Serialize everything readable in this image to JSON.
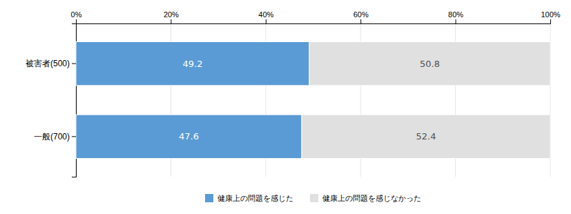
{
  "chart_data": {
    "type": "bar",
    "orientation": "horizontal",
    "stacked": true,
    "categories": [
      "被害者(500)",
      "一般(700)"
    ],
    "series": [
      {
        "name": "健康上の問題を感じた",
        "color": "#5B9BD5",
        "values": [
          49.2,
          47.6
        ]
      },
      {
        "name": "健康上の問題を感じなかった",
        "color": "#E0E0E0",
        "values": [
          50.8,
          52.4
        ]
      }
    ],
    "xlim": [
      0,
      100
    ],
    "xticks": [
      {
        "value": 0,
        "label": "0%"
      },
      {
        "value": 20,
        "label": "20%"
      },
      {
        "value": 40,
        "label": "40%"
      },
      {
        "value": 60,
        "label": "60%"
      },
      {
        "value": 80,
        "label": "80%"
      },
      {
        "value": 100,
        "label": "100%"
      }
    ],
    "grid": true,
    "data_labels": true,
    "legend": "bottom"
  }
}
